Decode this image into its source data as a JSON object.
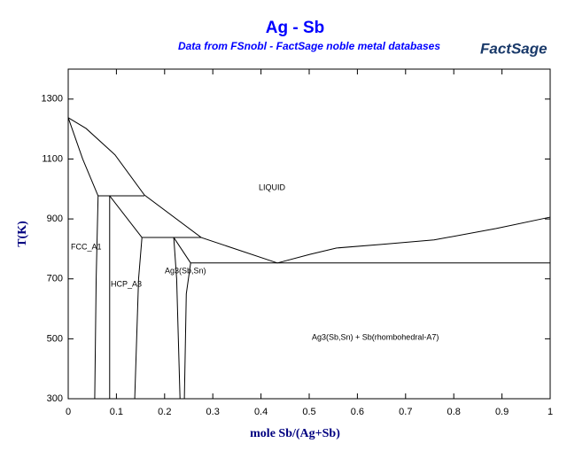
{
  "chart_data": {
    "type": "line",
    "title": "Ag - Sb",
    "subtitle": "Data from FSnobl - FactSage noble metal databases",
    "logo": "FactSage",
    "xlabel": "mole Sb/(Ag+Sb)",
    "ylabel": "T(K)",
    "xlim": [
      0,
      1
    ],
    "ylim": [
      300,
      1400
    ],
    "xticks": [
      0,
      0.1,
      0.2,
      0.3,
      0.4,
      0.5,
      0.6,
      0.7,
      0.8,
      0.9,
      1
    ],
    "yticks": [
      300,
      500,
      700,
      900,
      1100,
      1300
    ],
    "annotations": [
      "LIQUID",
      "FCC_A1",
      "HCP_A3",
      "Ag3(Sb,Sn)",
      "Ag3(Sb,Sn) + Sb(rhombohedral-A7)"
    ],
    "series": [
      {
        "color": "#000000",
        "x": [
          0,
          0.037,
          0.097,
          0.158,
          0.276,
          0.434
        ],
        "values": [
          1238,
          1202,
          1114,
          980,
          838,
          753
        ]
      },
      {
        "color": "#000000",
        "x": [
          0.434,
          0.502,
          0.557,
          0.649,
          0.759,
          0.888,
          1
        ],
        "values": [
          753,
          782,
          803,
          815,
          830,
          868,
          906
        ]
      },
      {
        "color": "#000000",
        "x": [
          0,
          0.03,
          0.062
        ],
        "values": [
          1238,
          1100,
          977
        ]
      },
      {
        "color": "#000000",
        "x": [
          0.062,
          0.058,
          0.055
        ],
        "values": [
          977,
          700,
          300
        ]
      },
      {
        "color": "#000000",
        "x": [
          0.062,
          0.158
        ],
        "values": [
          977,
          977
        ]
      },
      {
        "color": "#000000",
        "x": [
          0.086,
          0.086
        ],
        "values": [
          977,
          300
        ]
      },
      {
        "color": "#000000",
        "x": [
          0.086,
          0.153
        ],
        "values": [
          977,
          838
        ]
      },
      {
        "color": "#000000",
        "x": [
          0.153,
          0.146,
          0.138
        ],
        "values": [
          838,
          700,
          300
        ]
      },
      {
        "color": "#000000",
        "x": [
          0.153,
          0.276
        ],
        "values": [
          838,
          838
        ]
      },
      {
        "color": "#000000",
        "x": [
          0.219,
          0.225,
          0.232
        ],
        "values": [
          838,
          700,
          300
        ]
      },
      {
        "color": "#000000",
        "x": [
          0.219,
          0.254
        ],
        "values": [
          838,
          753
        ]
      },
      {
        "color": "#000000",
        "x": [
          0.254,
          0.245,
          0.241
        ],
        "values": [
          753,
          650,
          300
        ]
      },
      {
        "color": "#000000",
        "x": [
          0.254,
          1
        ],
        "values": [
          753,
          753
        ]
      }
    ]
  }
}
